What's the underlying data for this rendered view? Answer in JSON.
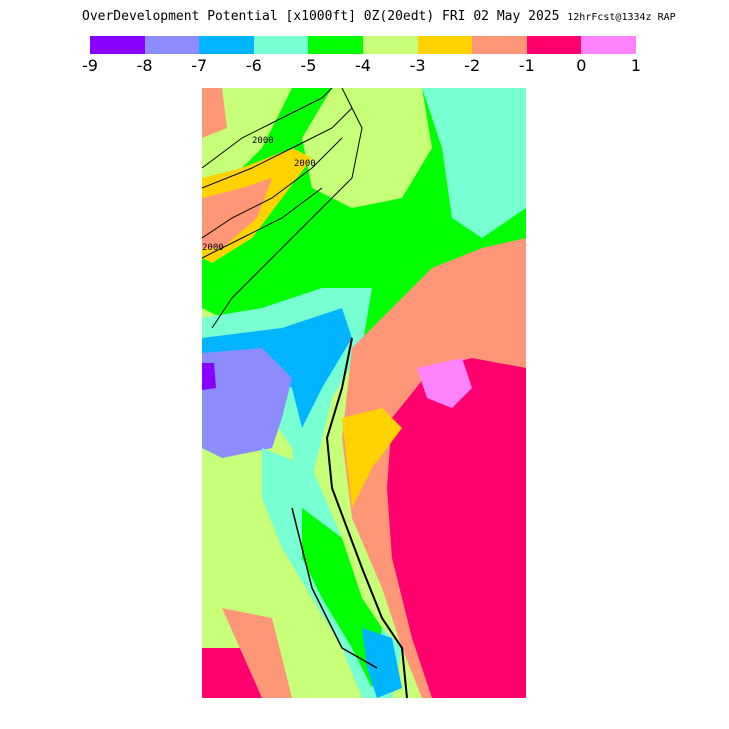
{
  "title": {
    "text": "OverDevelopment Potential [x1000ft] 0Z(20edt) FRI 02 May 2025",
    "forecast": "12hrFcst@1334z RAP"
  },
  "colorbar": {
    "colors": [
      "#8800ff",
      "#8c8cff",
      "#00b4ff",
      "#78ffd2",
      "#00ff00",
      "#c8ff78",
      "#ffd200",
      "#ff9678",
      "#ff006e",
      "#ff82ff"
    ],
    "ticks": [
      "-9",
      "-8",
      "-7",
      "-6",
      "-5",
      "-4",
      "-3",
      "-2",
      "-1",
      "0",
      "1"
    ]
  },
  "map": {
    "contour_labels": [
      "2000",
      "2000",
      "2000"
    ]
  }
}
